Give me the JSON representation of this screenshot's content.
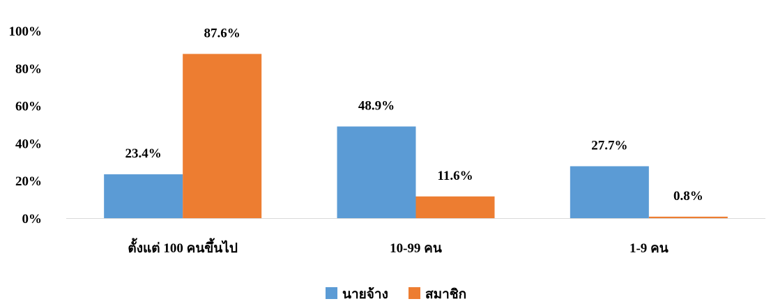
{
  "chart_data": {
    "type": "bar",
    "categories": [
      "ตั้งแต่ 100 คนขึ้นไป",
      "10-99 คน",
      "1-9 คน"
    ],
    "series": [
      {
        "name": "นายจ้าง",
        "values": [
          23.4,
          48.9,
          27.7
        ],
        "labels": [
          "23.4%",
          "48.9%",
          "27.7%"
        ],
        "color": "#5B9BD5"
      },
      {
        "name": "สมาชิก",
        "values": [
          87.6,
          11.6,
          0.8
        ],
        "labels": [
          "87.6%",
          "11.6%",
          "0.8%"
        ],
        "color": "#ED7D31"
      }
    ],
    "ylim": [
      0,
      100
    ],
    "yticks": [
      "0%",
      "20%",
      "40%",
      "60%",
      "80%",
      "100%"
    ],
    "title": "",
    "xlabel": "",
    "ylabel": "",
    "grid": false,
    "legend_position": "bottom"
  }
}
